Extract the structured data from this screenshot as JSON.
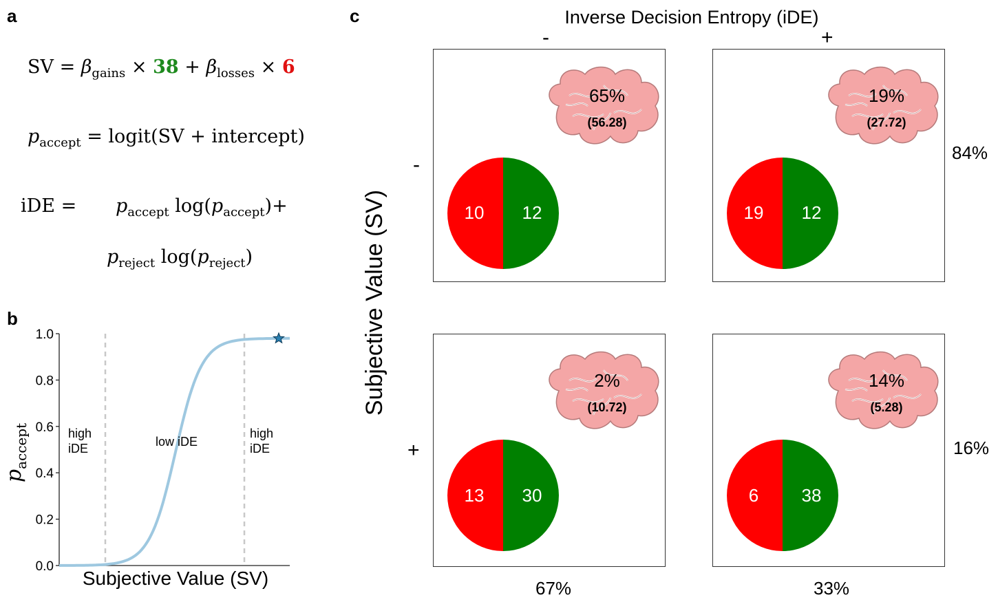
{
  "panels": {
    "a_letter": "a",
    "b_letter": "b",
    "c_letter": "c"
  },
  "equations": {
    "sv": {
      "lhs": "SV",
      "beta": "β",
      "gains_sub": "gains",
      "gains_value": "38",
      "losses_sub": "losses",
      "losses_value": "6",
      "times": "×",
      "plus": "+",
      "eq": "="
    },
    "paccept": {
      "p": "p",
      "accept_sub": "accept",
      "rhs": "logit(SV + intercept)"
    },
    "ide": {
      "lhs": "iDE =",
      "line1_log": "log(",
      "line1_end": ")+",
      "line2_log": "log(",
      "line2_end": ")",
      "reject_sub": "reject"
    }
  },
  "chart_data": {
    "type": "line",
    "xlabel": "Subjective Value (SV)",
    "ylabel": "p_accept",
    "ylim": [
      0.0,
      1.0
    ],
    "yticks": [
      "0.0",
      "0.2",
      "0.4",
      "0.6",
      "0.8",
      "1.0"
    ],
    "color": "#9ec8e0",
    "region_labels": [
      {
        "line1": "high",
        "line2": "iDE"
      },
      {
        "line1": "low iDE",
        "line2": ""
      },
      {
        "line1": "high",
        "line2": "iDE"
      }
    ],
    "star_marker_color": "#2a7fb0"
  },
  "panel_c": {
    "top_title": "Inverse Decision Entropy (iDE)",
    "col_signs": [
      "-",
      "+"
    ],
    "row_signs": [
      "-",
      "+"
    ],
    "left_title": "Subjective Value (SV)",
    "row_pcts": [
      "84%",
      "16%"
    ],
    "col_pcts": [
      "67%",
      "33%"
    ],
    "loss_color": "#ff0000",
    "gain_color": "#008000",
    "brain_color": "#f4a6a6",
    "cells": [
      {
        "brain_pct": "65%",
        "brain_sub": "(56.28)",
        "loss": "10",
        "gain": "12"
      },
      {
        "brain_pct": "19%",
        "brain_sub": "(27.72)",
        "loss": "19",
        "gain": "12"
      },
      {
        "brain_pct": "2%",
        "brain_sub": "(10.72)",
        "loss": "13",
        "gain": "30"
      },
      {
        "brain_pct": "14%",
        "brain_sub": "(5.28)",
        "loss": "6",
        "gain": "38"
      }
    ]
  }
}
